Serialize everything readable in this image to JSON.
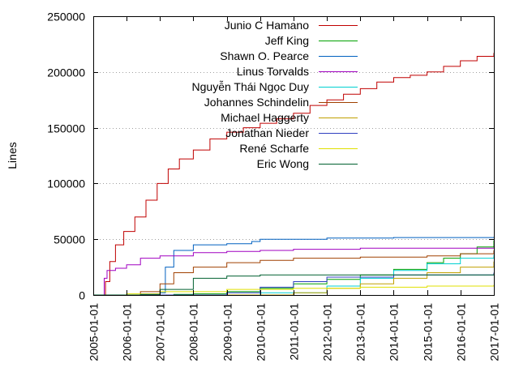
{
  "chart_data": {
    "type": "line",
    "ylabel": "Lines",
    "xlabel": "",
    "title": "",
    "xlim": [
      "2005-01-01",
      "2017-01-01"
    ],
    "ylim": [
      0,
      250000
    ],
    "yticks": [
      0,
      50000,
      100000,
      150000,
      200000,
      250000
    ],
    "xticks": [
      "2005-01-01",
      "2006-01-01",
      "2007-01-01",
      "2008-01-01",
      "2009-01-01",
      "2010-01-01",
      "2011-01-01",
      "2012-01-01",
      "2013-01-01",
      "2014-01-01",
      "2015-01-01",
      "2016-01-01",
      "2017-01-01"
    ],
    "grid": "horizontal-dotted",
    "legend_position": "top-left-inside",
    "series": [
      {
        "name": "Junio C Hamano",
        "color": "#c00000",
        "x": [
          "2005-04-01",
          "2005-05-15",
          "2005-07-01",
          "2005-09-01",
          "2005-12-01",
          "2006-04-01",
          "2006-08-01",
          "2006-12-01",
          "2007-04-01",
          "2007-08-01",
          "2008-01-01",
          "2008-07-01",
          "2009-01-01",
          "2009-07-01",
          "2010-01-01",
          "2010-07-01",
          "2011-01-01",
          "2011-07-01",
          "2012-01-01",
          "2012-07-01",
          "2013-01-01",
          "2013-07-01",
          "2014-01-01",
          "2014-07-01",
          "2015-01-01",
          "2015-07-01",
          "2016-01-01",
          "2016-07-01",
          "2017-01-01"
        ],
        "y": [
          0,
          12000,
          30000,
          45000,
          57000,
          70000,
          85000,
          100000,
          113000,
          122000,
          130000,
          140000,
          146000,
          150000,
          154000,
          158000,
          163000,
          170000,
          175000,
          180000,
          185000,
          191000,
          195000,
          197000,
          200000,
          205000,
          210000,
          214000,
          217000
        ]
      },
      {
        "name": "Jeff King",
        "color": "#00a000",
        "x": [
          "2005-01-01",
          "2006-06-01",
          "2007-06-01",
          "2008-01-01",
          "2009-01-01",
          "2010-01-01",
          "2011-01-01",
          "2012-01-01",
          "2013-01-01",
          "2014-01-01",
          "2015-01-01",
          "2015-07-01",
          "2016-01-01",
          "2016-07-01",
          "2017-01-01"
        ],
        "y": [
          0,
          0,
          500,
          1000,
          3000,
          6000,
          10000,
          14000,
          18000,
          23000,
          29000,
          33000,
          37000,
          43000,
          49000
        ]
      },
      {
        "name": "Shawn O. Pearce",
        "color": "#0060c0",
        "x": [
          "2005-01-01",
          "2006-06-01",
          "2007-01-01",
          "2007-03-01",
          "2007-06-01",
          "2008-01-01",
          "2009-01-01",
          "2009-10-01",
          "2010-01-01",
          "2012-01-01",
          "2014-01-01",
          "2017-01-01"
        ],
        "y": [
          0,
          0,
          2000,
          25000,
          40000,
          45000,
          46000,
          48000,
          50000,
          51000,
          51500,
          52000
        ]
      },
      {
        "name": "Linus Torvalds",
        "color": "#a000c0",
        "x": [
          "2005-04-01",
          "2005-05-01",
          "2005-06-01",
          "2005-09-01",
          "2006-01-01",
          "2006-06-01",
          "2007-01-01",
          "2008-01-01",
          "2009-01-01",
          "2010-01-01",
          "2011-01-01",
          "2013-01-01",
          "2017-01-01"
        ],
        "y": [
          0,
          15000,
          22000,
          24000,
          27000,
          33000,
          35000,
          38000,
          39000,
          40000,
          41000,
          42000,
          42500
        ]
      },
      {
        "name": "Nguyễn Thái Ngọc Duy",
        "color": "#00d0d0",
        "x": [
          "2005-01-01",
          "2008-01-01",
          "2010-01-01",
          "2012-01-01",
          "2013-01-01",
          "2014-01-01",
          "2015-01-01",
          "2016-01-01",
          "2017-01-01"
        ],
        "y": [
          0,
          0,
          2000,
          8000,
          15000,
          22000,
          28000,
          33000,
          36000
        ]
      },
      {
        "name": "Johannes Schindelin",
        "color": "#a04000",
        "x": [
          "2005-01-01",
          "2006-01-01",
          "2006-06-01",
          "2007-01-01",
          "2007-06-01",
          "2008-01-01",
          "2009-01-01",
          "2010-01-01",
          "2011-01-01",
          "2013-01-01",
          "2015-01-01",
          "2016-01-01",
          "2017-01-01"
        ],
        "y": [
          0,
          0,
          3000,
          10000,
          20000,
          25000,
          29000,
          31000,
          33000,
          34000,
          35000,
          37000,
          40000
        ]
      },
      {
        "name": "Michael Haggerty",
        "color": "#c0a000",
        "x": [
          "2005-01-01",
          "2010-01-01",
          "2011-01-01",
          "2012-01-01",
          "2013-01-01",
          "2014-01-01",
          "2015-01-01",
          "2016-01-01",
          "2017-01-01"
        ],
        "y": [
          0,
          0,
          2000,
          6000,
          10000,
          15000,
          20000,
          25000,
          30000
        ]
      },
      {
        "name": "Jonathan Nieder",
        "color": "#3040c0",
        "x": [
          "2005-01-01",
          "2008-01-01",
          "2009-01-01",
          "2010-01-01",
          "2011-01-01",
          "2012-01-01",
          "2014-01-01",
          "2017-01-01"
        ],
        "y": [
          0,
          0,
          2000,
          7000,
          12000,
          16000,
          18000,
          20000
        ]
      },
      {
        "name": "René Scharfe",
        "color": "#e0e000",
        "x": [
          "2005-01-01",
          "2006-01-01",
          "2007-01-01",
          "2009-01-01",
          "2011-01-01",
          "2013-01-01",
          "2015-01-01",
          "2017-01-01"
        ],
        "y": [
          0,
          1000,
          3000,
          5000,
          6000,
          7000,
          8000,
          9000
        ]
      },
      {
        "name": "Eric Wong",
        "color": "#006030",
        "x": [
          "2005-01-01",
          "2006-06-01",
          "2007-01-01",
          "2008-01-01",
          "2009-01-01",
          "2010-01-01",
          "2017-01-01"
        ],
        "y": [
          0,
          500,
          5000,
          15000,
          17000,
          18000,
          19000
        ]
      }
    ]
  }
}
